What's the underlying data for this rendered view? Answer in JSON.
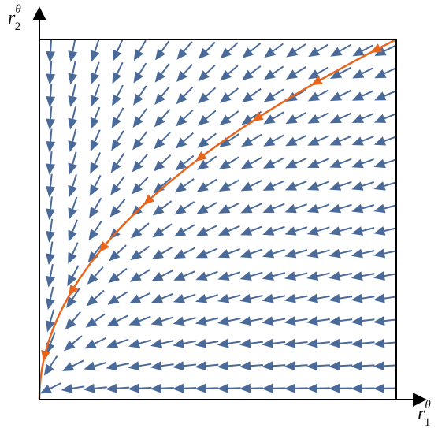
{
  "axes": {
    "x_label": {
      "base": "r",
      "sub": "1",
      "sup": "θ"
    },
    "y_label": {
      "base": "r",
      "sub": "2",
      "sup": "θ"
    }
  }
}
